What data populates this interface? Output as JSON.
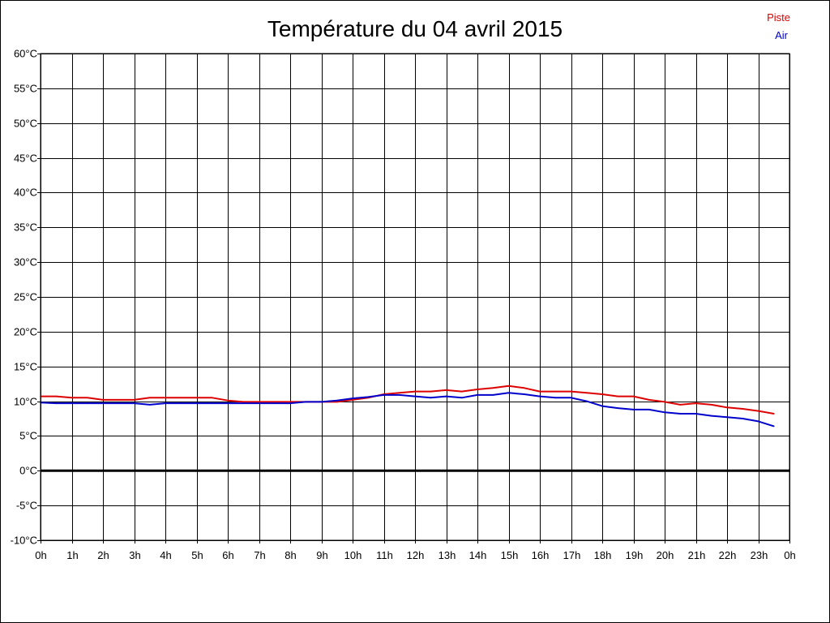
{
  "chart_data": {
    "type": "line",
    "title": "Température du 04 avril 2015",
    "xlabel": "",
    "ylabel": "",
    "x_tick_labels": [
      "0h",
      "1h",
      "2h",
      "3h",
      "4h",
      "5h",
      "6h",
      "7h",
      "8h",
      "9h",
      "10h",
      "11h",
      "12h",
      "13h",
      "14h",
      "15h",
      "16h",
      "17h",
      "18h",
      "19h",
      "20h",
      "21h",
      "22h",
      "23h",
      "0h"
    ],
    "y_tick_labels": [
      "60°C",
      "55°C",
      "50°C",
      "45°C",
      "40°C",
      "35°C",
      "30°C",
      "25°C",
      "20°C",
      "15°C",
      "10°C",
      "5°C",
      "0°C",
      "-5°C",
      "-10°C"
    ],
    "xlim": [
      0,
      24
    ],
    "ylim": [
      -10,
      60
    ],
    "y_tick_step": 5,
    "grid": true,
    "legend_position": "top-right",
    "zero_line": true,
    "series": [
      {
        "name": "Piste",
        "color": "#dd0000",
        "x": [
          0,
          0.5,
          1,
          1.5,
          2,
          2.5,
          3,
          3.5,
          4,
          4.5,
          5,
          5.5,
          6,
          6.5,
          7,
          7.5,
          8,
          8.5,
          9,
          9.5,
          10,
          10.5,
          11,
          11.5,
          12,
          12.5,
          13,
          13.5,
          14,
          14.5,
          15,
          15.5,
          16,
          16.5,
          17,
          17.5,
          18,
          18.5,
          19,
          19.5,
          20,
          20.5,
          21,
          21.5,
          22,
          22.5,
          23,
          23.5
        ],
        "y": [
          10.7,
          10.7,
          10.5,
          10.5,
          10.2,
          10.2,
          10.2,
          10.5,
          10.5,
          10.5,
          10.5,
          10.5,
          10.1,
          9.9,
          9.9,
          9.9,
          9.9,
          9.9,
          9.9,
          9.9,
          10.2,
          10.5,
          11.0,
          11.2,
          11.4,
          11.4,
          11.6,
          11.4,
          11.7,
          11.9,
          12.2,
          11.9,
          11.4,
          11.4,
          11.4,
          11.2,
          11.0,
          10.7,
          10.7,
          10.2,
          9.9,
          9.5,
          9.7,
          9.5,
          9.1,
          8.9,
          8.6,
          8.2
        ]
      },
      {
        "name": "Air",
        "color": "#0000cc",
        "x": [
          0,
          0.5,
          1,
          1.5,
          2,
          2.5,
          3,
          3.5,
          4,
          4.5,
          5,
          5.5,
          6,
          6.5,
          7,
          7.5,
          8,
          8.5,
          9,
          9.5,
          10,
          10.5,
          11,
          11.5,
          12,
          12.5,
          13,
          13.5,
          14,
          14.5,
          15,
          15.5,
          16,
          16.5,
          17,
          17.5,
          18,
          18.5,
          19,
          19.5,
          20,
          20.5,
          21,
          21.5,
          22,
          22.5,
          23,
          23.5
        ],
        "y": [
          9.8,
          9.7,
          9.7,
          9.7,
          9.7,
          9.7,
          9.7,
          9.5,
          9.7,
          9.7,
          9.7,
          9.7,
          9.7,
          9.7,
          9.7,
          9.7,
          9.7,
          9.9,
          9.9,
          10.1,
          10.4,
          10.6,
          10.9,
          10.9,
          10.7,
          10.5,
          10.7,
          10.5,
          10.9,
          10.9,
          11.2,
          11.0,
          10.7,
          10.5,
          10.5,
          10.0,
          9.3,
          9.0,
          8.8,
          8.8,
          8.4,
          8.2,
          8.2,
          7.9,
          7.7,
          7.5,
          7.1,
          6.4
        ]
      }
    ]
  }
}
